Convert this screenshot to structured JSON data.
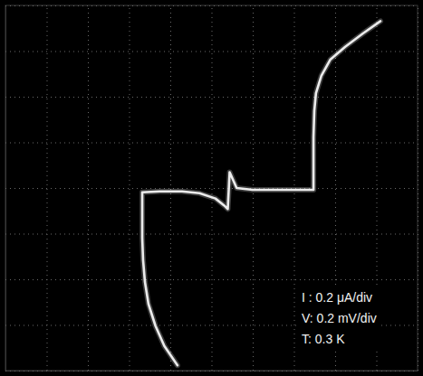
{
  "chart_data": {
    "type": "line",
    "x": [
      -0.165,
      -0.229,
      -0.272,
      -0.306,
      -0.323,
      -0.332,
      -0.336,
      -0.336,
      -0.336,
      -0.251,
      -0.143,
      -0.058,
      0.019,
      0.062,
      0.079,
      0.088,
      0.122,
      0.199,
      0.328,
      0.435,
      0.495,
      0.495,
      0.495,
      0.499,
      0.507,
      0.533,
      0.576,
      0.649,
      0.735,
      0.82
    ],
    "series": [
      {
        "color": "#ececec",
        "values": [
          -0.777,
          -0.692,
          -0.604,
          -0.508,
          -0.412,
          -0.315,
          -0.219,
          -0.123,
          -0.019,
          -0.015,
          -0.015,
          -0.023,
          -0.046,
          -0.077,
          -0.092,
          0.069,
          0,
          -0.008,
          -0.008,
          -0.008,
          -0.008,
          0.108,
          0.223,
          0.338,
          0.415,
          0.492,
          0.562,
          0.619,
          0.677,
          0.731
        ]
      }
    ],
    "xlim": [
      -1,
      1
    ],
    "ylim": [
      -0.8,
      0.8
    ],
    "xticks": [
      -1,
      -0.8,
      -0.6,
      -0.4,
      -0.2,
      0,
      0.2,
      0.4,
      0.6,
      0.8,
      1
    ],
    "yticks": [
      -0.8,
      -0.6,
      -0.4,
      -0.2,
      0,
      0.2,
      0.4,
      0.6,
      0.8
    ],
    "grid": true,
    "tick_labels": false,
    "annotations": [
      "I : 0.2 μA/div",
      "V: 0.2 mV/div",
      "T: 0.3 K"
    ]
  }
}
